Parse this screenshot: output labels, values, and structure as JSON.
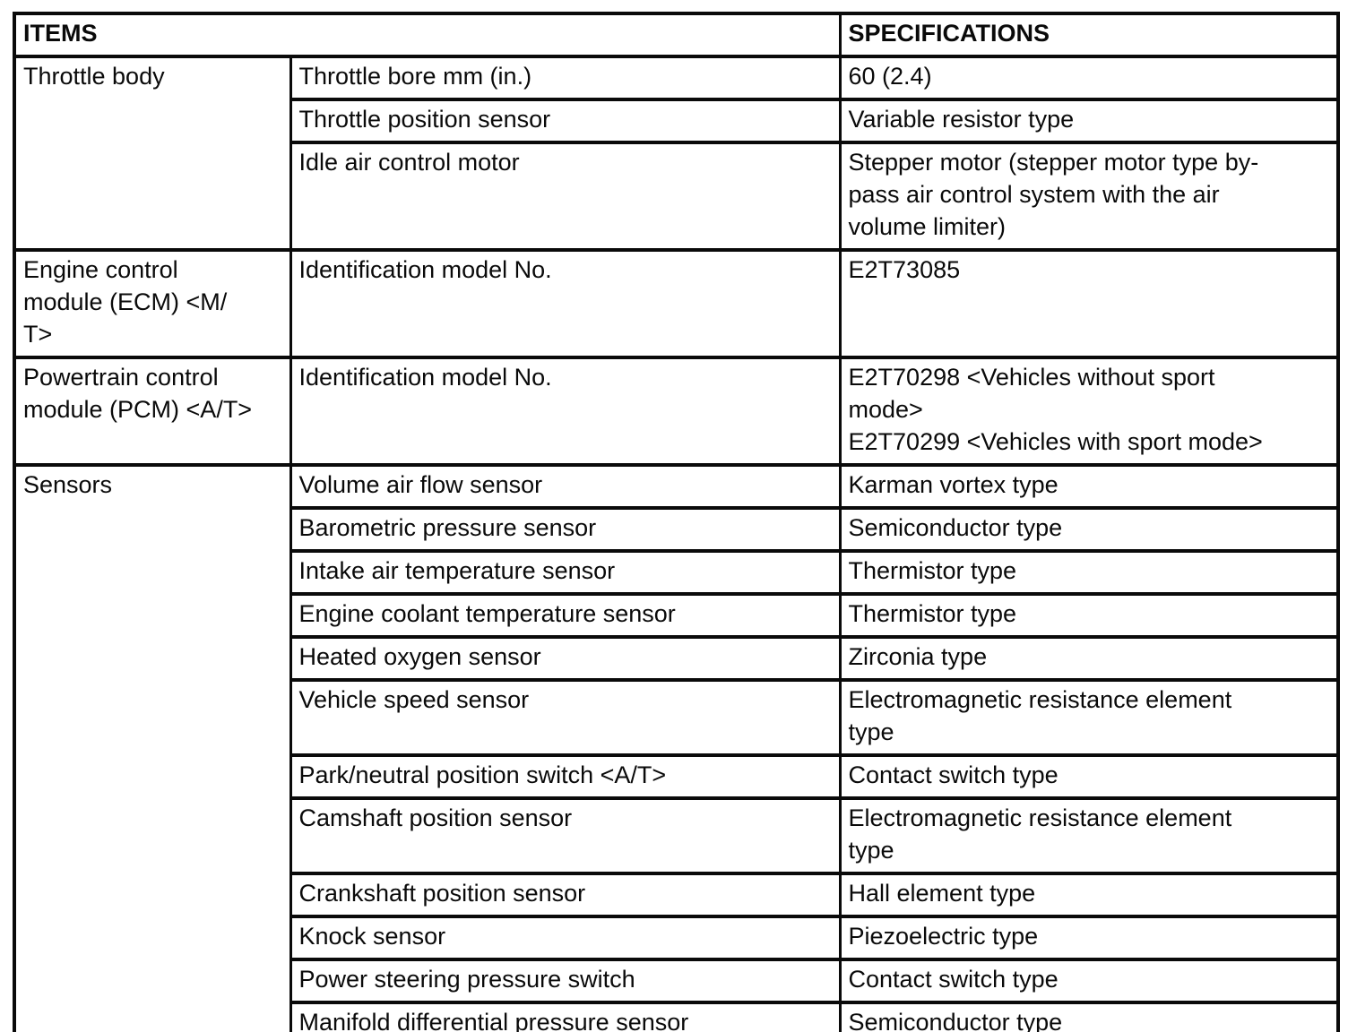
{
  "table": {
    "headers": {
      "items": "ITEMS",
      "specifications": "SPECIFICATIONS"
    },
    "groups": [
      {
        "item": "Throttle body",
        "rows": [
          {
            "sub_item": "Throttle bore mm (in.)",
            "specification": "60 (2.4)"
          },
          {
            "sub_item": "Throttle position sensor",
            "specification": "Variable resistor type"
          },
          {
            "sub_item": "Idle air control motor",
            "specification": "Stepper motor (stepper motor type by-\npass air control system with the air\nvolume limiter)"
          }
        ]
      },
      {
        "item": "Engine control\nmodule (ECM) <M/\nT>",
        "rows": [
          {
            "sub_item": "Identification model No.",
            "specification": "E2T73085"
          }
        ]
      },
      {
        "item": "Powertrain control\nmodule (PCM) <A/T>",
        "rows": [
          {
            "sub_item": "Identification model No.",
            "specification": "E2T70298 <Vehicles without sport\nmode>\nE2T70299 <Vehicles with sport mode>"
          }
        ]
      },
      {
        "item": "Sensors",
        "rows": [
          {
            "sub_item": "Volume air flow sensor",
            "specification": "Karman vortex type"
          },
          {
            "sub_item": "Barometric pressure sensor",
            "specification": "Semiconductor type"
          },
          {
            "sub_item": "Intake air temperature sensor",
            "specification": "Thermistor type"
          },
          {
            "sub_item": "Engine coolant temperature sensor",
            "specification": "Thermistor type"
          },
          {
            "sub_item": "Heated oxygen sensor",
            "specification": "Zirconia type"
          },
          {
            "sub_item": "Vehicle speed sensor",
            "specification": "Electromagnetic resistance element\ntype"
          },
          {
            "sub_item": "Park/neutral position switch <A/T>",
            "specification": "Contact switch type"
          },
          {
            "sub_item": "Camshaft position sensor",
            "specification": "Electromagnetic resistance element\ntype"
          },
          {
            "sub_item": "Crankshaft position sensor",
            "specification": "Hall element type"
          },
          {
            "sub_item": "Knock sensor",
            "specification": "Piezoelectric type"
          },
          {
            "sub_item": "Power steering pressure switch",
            "specification": "Contact switch type"
          },
          {
            "sub_item": "Manifold differential pressure sensor",
            "specification": "Semiconductor type"
          }
        ]
      }
    ]
  }
}
